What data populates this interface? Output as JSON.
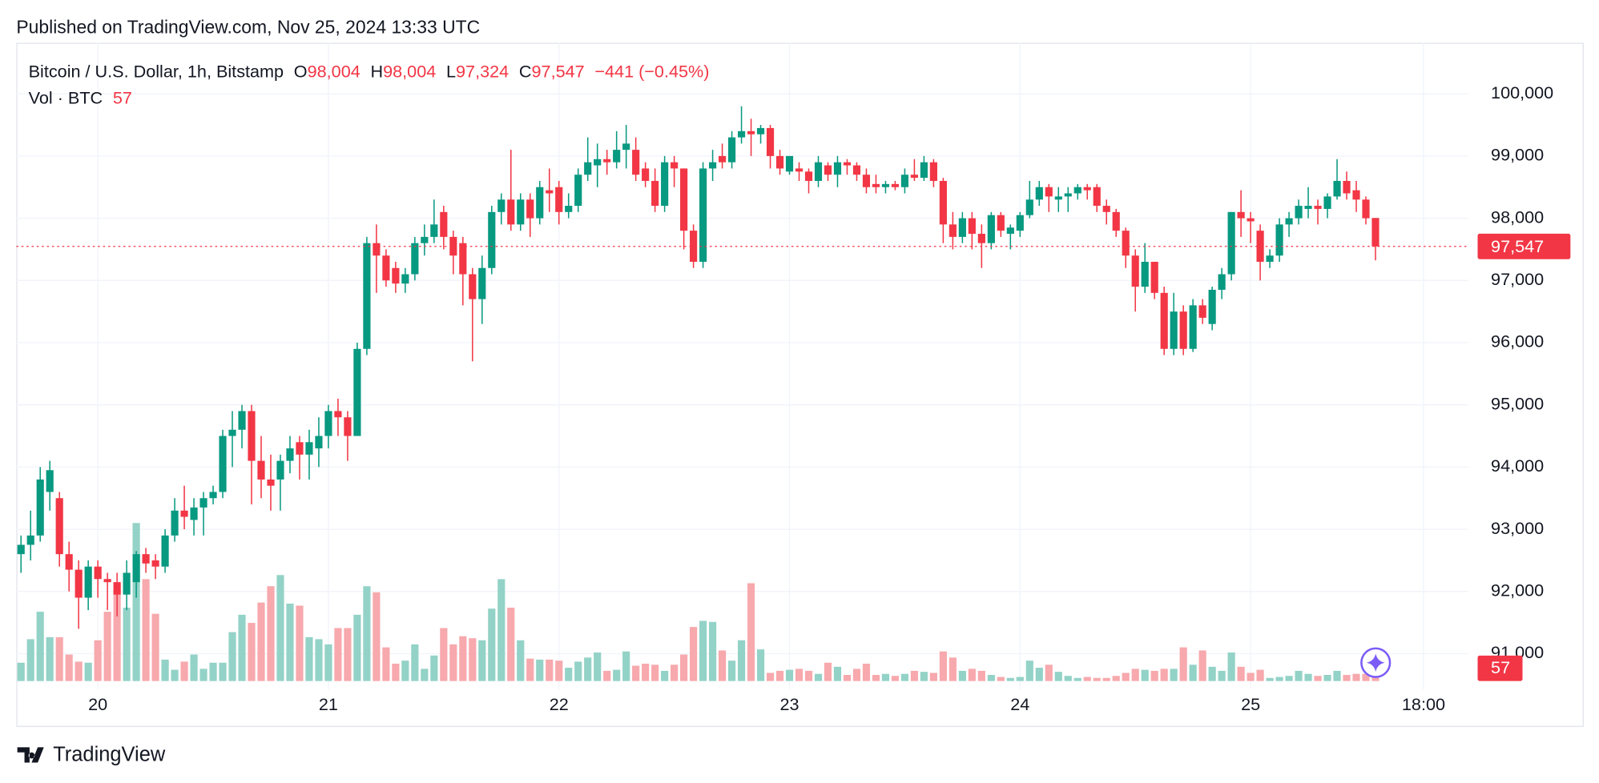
{
  "header": {
    "published": "Published on TradingView.com, Nov 25, 2024 13:33 UTC"
  },
  "footer": {
    "brand": "TradingView"
  },
  "chart_data": {
    "type": "candlestick",
    "legend": {
      "symbol": "Bitcoin / U.S. Dollar, 1h, Bitstamp",
      "fields": [
        {
          "key": "O",
          "value": "98,004"
        },
        {
          "key": "H",
          "value": "98,004"
        },
        {
          "key": "L",
          "value": "97,324"
        },
        {
          "key": "C",
          "value": "97,547"
        }
      ],
      "change": "−441 (−0.45%)",
      "volume_name": "Vol · BTC",
      "volume": "57"
    },
    "colors": {
      "up": "#089981",
      "down": "#f23645",
      "up_volume": "#93d2c7",
      "down_volume": "#f7a9ad"
    },
    "grid": true,
    "ylim": [
      90560,
      100820
    ],
    "yticks": [
      {
        "value": 91000,
        "label": "91,000"
      },
      {
        "value": 92000,
        "label": "92,000"
      },
      {
        "value": 93000,
        "label": "93,000"
      },
      {
        "value": 94000,
        "label": "94,000"
      },
      {
        "value": 95000,
        "label": "95,000"
      },
      {
        "value": 96000,
        "label": "96,000"
      },
      {
        "value": 97000,
        "label": "97,000"
      },
      {
        "value": 98000,
        "label": "98,000"
      },
      {
        "value": 99000,
        "label": "99,000"
      },
      {
        "value": 100000,
        "label": "100,000"
      }
    ],
    "categories": [
      null,
      null,
      null,
      null,
      null,
      null,
      null,
      null,
      "20",
      null,
      null,
      null,
      null,
      null,
      null,
      null,
      null,
      null,
      null,
      null,
      null,
      null,
      null,
      null,
      null,
      null,
      null,
      null,
      null,
      null,
      null,
      null,
      "21",
      null,
      null,
      null,
      null,
      null,
      null,
      null,
      null,
      null,
      null,
      null,
      null,
      null,
      null,
      null,
      null,
      null,
      null,
      null,
      null,
      null,
      null,
      null,
      "22",
      null,
      null,
      null,
      null,
      null,
      null,
      null,
      null,
      null,
      null,
      null,
      null,
      null,
      null,
      null,
      null,
      null,
      null,
      null,
      null,
      null,
      null,
      null,
      "23",
      null,
      null,
      null,
      null,
      null,
      null,
      null,
      null,
      null,
      null,
      null,
      null,
      null,
      null,
      null,
      null,
      null,
      null,
      null,
      null,
      null,
      null,
      null,
      "24",
      null,
      null,
      null,
      null,
      null,
      null,
      null,
      null,
      null,
      null,
      null,
      null,
      null,
      null,
      null,
      null,
      null,
      null,
      null,
      null,
      null,
      null,
      null,
      "25",
      null,
      null,
      null,
      null,
      null,
      null,
      null,
      null,
      null,
      null,
      null,
      null,
      null,
      null,
      null,
      null,
      null,
      "18:00",
      null,
      null,
      null,
      null
    ],
    "open": [
      92600,
      92750,
      92900,
      93600,
      93500,
      92600,
      92350,
      91900,
      92400,
      92200,
      92150,
      91950,
      92150,
      92600,
      92500,
      92400,
      92900,
      93300,
      93150,
      93350,
      93500,
      93600,
      94500,
      94600,
      94900,
      94100,
      93800,
      93800,
      94100,
      94400,
      94200,
      94300,
      94500,
      94900,
      94800,
      94500,
      95900,
      97600,
      97400,
      97200,
      96950,
      97100,
      97600,
      97700,
      98100,
      97700,
      97600,
      97100,
      96700,
      97200,
      98100,
      98300,
      97900,
      98300,
      98000,
      98450,
      98500,
      98100,
      98200,
      98700,
      98850,
      98950,
      98900,
      99100,
      99100,
      98800,
      98600,
      98200,
      98900,
      98800,
      97800,
      97300,
      98800,
      99000,
      98900,
      99300,
      99400,
      99350,
      99450,
      99000,
      98750,
      98800,
      98750,
      98600,
      98850,
      98700,
      98900,
      98850,
      98700,
      98550,
      98500,
      98550,
      98500,
      98700,
      98650,
      98900,
      98600,
      97900,
      97700,
      98000,
      97750,
      97600,
      98050,
      97750,
      97800,
      98050,
      98300,
      98500,
      98300,
      98350,
      98400,
      98500,
      98500,
      98200,
      98100,
      97800,
      97400,
      96900,
      97300,
      96800,
      95900,
      96500,
      95900,
      96600,
      96300,
      96850,
      97100,
      98100,
      98000,
      97800,
      97300,
      97400,
      97900,
      98000,
      98150,
      98200,
      98150,
      98350,
      98600,
      98450,
      98300,
      98004,
      null,
      null,
      null,
      null,
      null,
      null,
      null,
      null,
      null
    ],
    "high": [
      92900,
      93300,
      94000,
      94100,
      93600,
      92800,
      92500,
      92500,
      92500,
      92300,
      92300,
      92500,
      92650,
      92700,
      92600,
      93000,
      93500,
      93700,
      93500,
      93600,
      93700,
      94600,
      94900,
      95000,
      95000,
      94500,
      94200,
      94200,
      94500,
      94500,
      94600,
      94800,
      95000,
      95100,
      94900,
      96000,
      97700,
      97900,
      97500,
      97300,
      97200,
      97700,
      97900,
      98300,
      98200,
      97800,
      97700,
      97200,
      97400,
      98200,
      98400,
      99100,
      98400,
      98400,
      98600,
      98800,
      98600,
      98400,
      98800,
      99300,
      99200,
      99100,
      99400,
      99500,
      99300,
      98900,
      98800,
      99000,
      99000,
      98800,
      97900,
      98900,
      99100,
      99200,
      99400,
      99800,
      99600,
      99500,
      99500,
      99100,
      99000,
      98900,
      98800,
      99000,
      98900,
      99000,
      98950,
      98900,
      98800,
      98700,
      98600,
      98600,
      98800,
      98950,
      99000,
      98950,
      98650,
      98100,
      98100,
      98100,
      97900,
      98100,
      98100,
      97900,
      98100,
      98600,
      98600,
      98550,
      98500,
      98500,
      98550,
      98550,
      98550,
      98300,
      98150,
      97850,
      97500,
      97600,
      97300,
      96900,
      96800,
      96600,
      96700,
      96700,
      96900,
      97200,
      98100,
      98450,
      98100,
      97900,
      97500,
      98000,
      98100,
      98300,
      98500,
      98300,
      98400,
      98950,
      98750,
      98600,
      98350,
      98004,
      null,
      null,
      null,
      null,
      null,
      null,
      null,
      null,
      null
    ],
    "low": [
      92300,
      92500,
      92800,
      93300,
      92400,
      92000,
      91400,
      91700,
      91900,
      91700,
      91600,
      91700,
      91900,
      92300,
      92200,
      92300,
      92800,
      93000,
      92900,
      92900,
      93400,
      93500,
      94000,
      94300,
      93400,
      93500,
      93300,
      93300,
      93900,
      93800,
      93800,
      94000,
      94300,
      94500,
      94100,
      94500,
      95800,
      96800,
      96900,
      96800,
      96800,
      97000,
      97400,
      97600,
      97500,
      97100,
      96600,
      95700,
      96300,
      97100,
      97900,
      97800,
      97800,
      97700,
      97900,
      98100,
      97900,
      98000,
      98100,
      98600,
      98500,
      98700,
      98800,
      98800,
      98600,
      98500,
      98100,
      98100,
      98500,
      97500,
      97200,
      97200,
      98600,
      98800,
      98800,
      99200,
      99000,
      99200,
      98800,
      98700,
      98700,
      98600,
      98400,
      98500,
      98600,
      98500,
      98700,
      98600,
      98400,
      98400,
      98400,
      98450,
      98400,
      98600,
      98600,
      98500,
      97600,
      97500,
      97600,
      97500,
      97200,
      97500,
      97700,
      97500,
      97700,
      98000,
      98200,
      98100,
      98100,
      98100,
      98300,
      98300,
      98100,
      97900,
      97700,
      97200,
      96500,
      96800,
      96700,
      95800,
      95800,
      95800,
      95850,
      96300,
      96200,
      96700,
      97000,
      97700,
      97600,
      97000,
      97200,
      97300,
      97700,
      97900,
      98000,
      97900,
      98000,
      98300,
      98300,
      98100,
      97900,
      97324,
      null,
      null,
      null,
      null,
      null,
      null,
      null,
      null,
      null
    ],
    "close": [
      92750,
      92900,
      93800,
      93950,
      92600,
      92350,
      91900,
      92400,
      92200,
      92150,
      91950,
      92300,
      92600,
      92450,
      92400,
      92900,
      93300,
      93200,
      93350,
      93500,
      93600,
      94500,
      94600,
      94900,
      94100,
      93800,
      93700,
      94100,
      94300,
      94200,
      94400,
      94500,
      94900,
      94800,
      94500,
      95900,
      97600,
      97400,
      97000,
      96950,
      97100,
      97600,
      97700,
      97900,
      97700,
      97400,
      97100,
      96700,
      97200,
      98100,
      98300,
      97900,
      98300,
      98000,
      98500,
      98400,
      98100,
      98200,
      98700,
      98900,
      98950,
      98900,
      99100,
      99200,
      98700,
      98600,
      98200,
      98900,
      98800,
      97800,
      97300,
      98800,
      98900,
      98900,
      99300,
      99400,
      99350,
      99450,
      99000,
      98800,
      99000,
      98750,
      98600,
      98900,
      98700,
      98900,
      98850,
      98700,
      98500,
      98500,
      98550,
      98500,
      98700,
      98650,
      98900,
      98600,
      97900,
      97700,
      98000,
      97750,
      97600,
      98050,
      97800,
      97850,
      98050,
      98300,
      98500,
      98350,
      98350,
      98400,
      98500,
      98450,
      98200,
      98100,
      97800,
      97400,
      96900,
      97300,
      96800,
      95900,
      96500,
      95900,
      96600,
      96400,
      96850,
      97100,
      98100,
      98000,
      97950,
      97300,
      97400,
      97900,
      98000,
      98200,
      98200,
      98150,
      98350,
      98600,
      98400,
      98300,
      98000,
      97547,
      null,
      null,
      null,
      null,
      null,
      null,
      null,
      null,
      null
    ],
    "volume": [
      171,
      390,
      646,
      409,
      409,
      247,
      181,
      171,
      380,
      646,
      903,
      684,
      1473,
      950,
      627,
      200,
      105,
      181,
      247,
      114,
      171,
      171,
      456,
      618,
      542,
      732,
      884,
      988,
      722,
      703,
      409,
      390,
      342,
      494,
      494,
      618,
      884,
      827,
      314,
      162,
      190,
      342,
      114,
      238,
      494,
      342,
      418,
      399,
      380,
      675,
      950,
      684,
      380,
      209,
      200,
      200,
      190,
      124,
      181,
      219,
      266,
      95,
      105,
      276,
      143,
      162,
      152,
      95,
      152,
      247,
      504,
      561,
      551,
      285,
      190,
      380,
      912,
      295,
      76,
      95,
      105,
      114,
      95,
      67,
      171,
      133,
      57,
      114,
      162,
      57,
      67,
      48,
      67,
      95,
      86,
      76,
      276,
      219,
      95,
      114,
      95,
      57,
      38,
      29,
      38,
      190,
      124,
      152,
      86,
      48,
      29,
      38,
      29,
      29,
      48,
      76,
      114,
      105,
      95,
      114,
      114,
      314,
      152,
      285,
      133,
      95,
      266,
      133,
      76,
      105,
      29,
      38,
      48,
      95,
      67,
      48,
      57,
      95,
      57,
      67,
      67,
      57,
      null,
      null,
      null,
      null,
      null,
      null,
      null,
      null,
      null
    ]
  }
}
